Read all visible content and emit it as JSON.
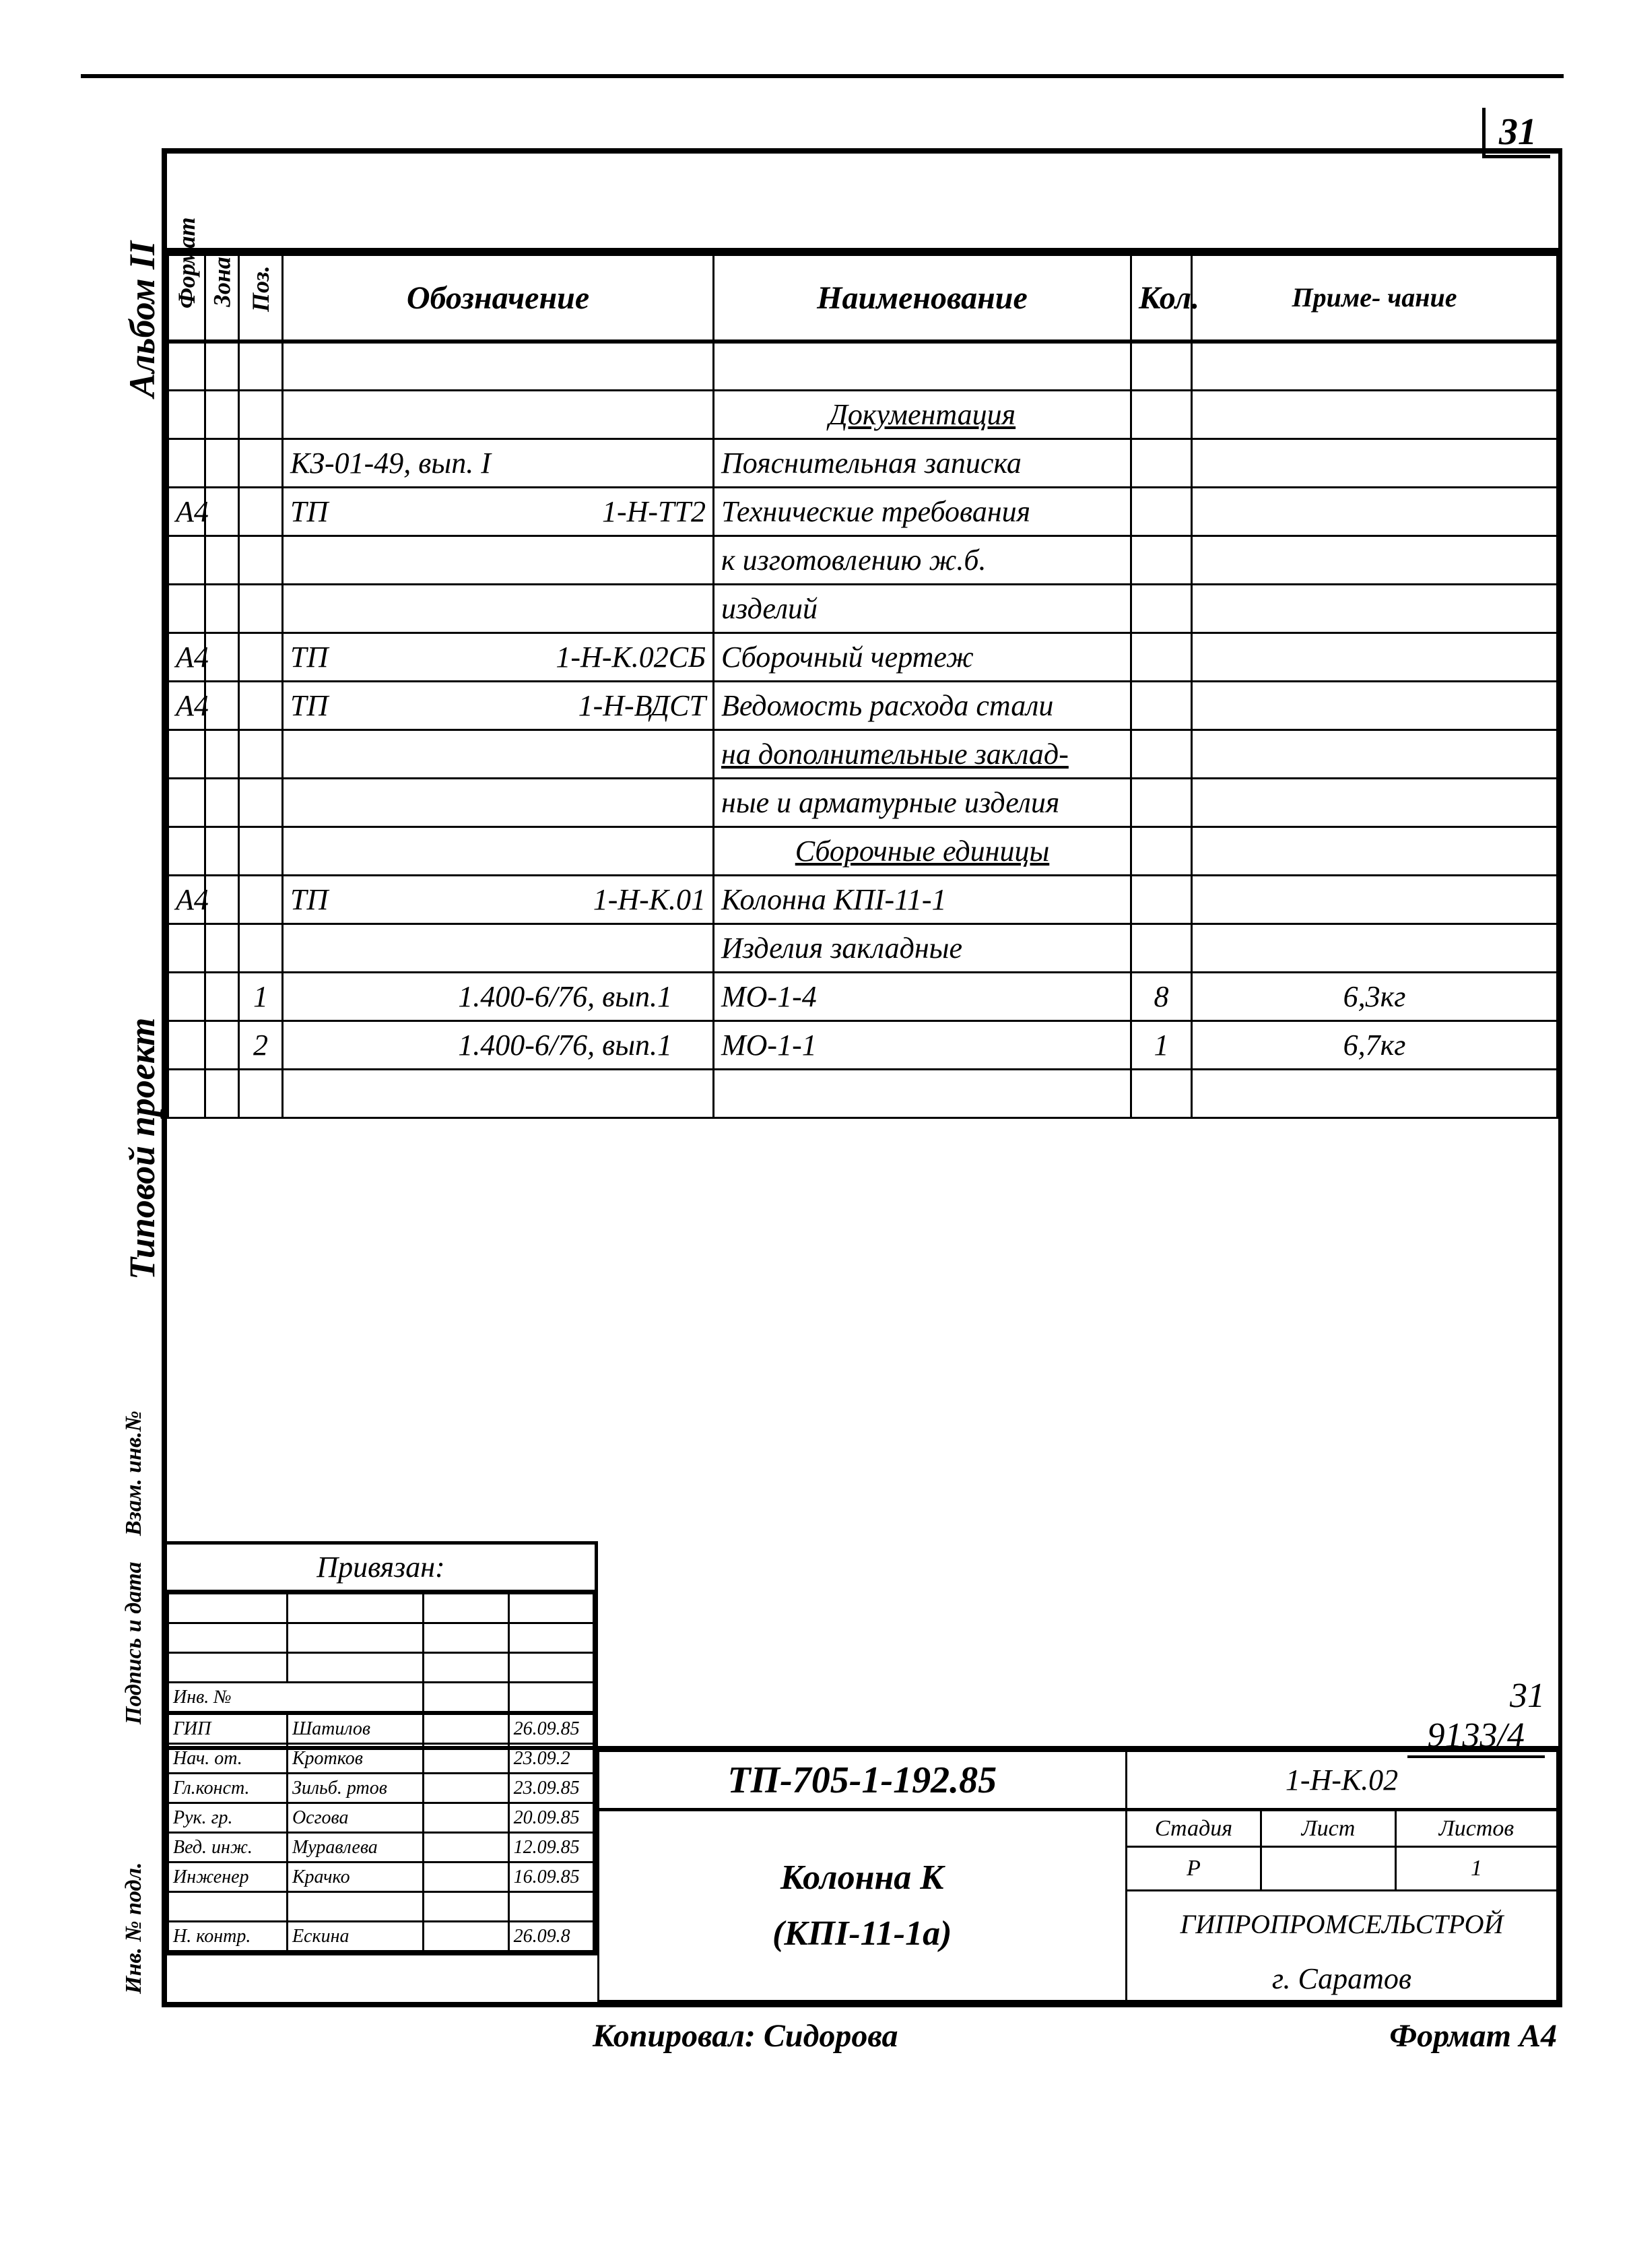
{
  "page_number_top": "31",
  "side": {
    "album": "Альбом II",
    "project": "Типовой проект",
    "a": "Взам. инв.№",
    "b": "Подпись и дата",
    "c": "Инв. № подл."
  },
  "bom": {
    "headers": {
      "format": "Формат",
      "zone": "Зона",
      "pos": "Поз.",
      "designation": "Обозначение",
      "name": "Наименование",
      "qty": "Кол.",
      "note": "Приме-\nчание"
    },
    "rows": [
      {
        "fmt": "",
        "zone": "",
        "pos": "",
        "desig": "",
        "name": "",
        "qty": "",
        "note": ""
      },
      {
        "fmt": "",
        "zone": "",
        "pos": "",
        "desig": "",
        "name": "Документация",
        "name_underline": true,
        "name_center": true,
        "qty": "",
        "note": ""
      },
      {
        "fmt": "",
        "zone": "",
        "pos": "",
        "desig": "КЗ-01-49, вып. I",
        "name": "Пояснительная записка",
        "qty": "",
        "note": ""
      },
      {
        "fmt": "А4",
        "zone": "",
        "pos": "",
        "desig_l": "ТП",
        "desig_r": "1-Н-ТТ2",
        "name": "Технические требования",
        "qty": "",
        "note": ""
      },
      {
        "fmt": "",
        "zone": "",
        "pos": "",
        "desig": "",
        "name": "к изготовлению ж.б.",
        "qty": "",
        "note": ""
      },
      {
        "fmt": "",
        "zone": "",
        "pos": "",
        "desig": "",
        "name": "изделий",
        "qty": "",
        "note": ""
      },
      {
        "fmt": "А4",
        "zone": "",
        "pos": "",
        "desig_l": "ТП",
        "desig_r": "1-Н-К.02СБ",
        "name": "Сборочный чертеж",
        "qty": "",
        "note": ""
      },
      {
        "fmt": "А4",
        "zone": "",
        "pos": "",
        "desig_l": "ТП",
        "desig_r": "1-Н-ВДСТ",
        "name": "Ведомость расхода стали",
        "qty": "",
        "note": ""
      },
      {
        "fmt": "",
        "zone": "",
        "pos": "",
        "desig": "",
        "name": "на дополнительные заклад-",
        "name_underline": true,
        "qty": "",
        "note": ""
      },
      {
        "fmt": "",
        "zone": "",
        "pos": "",
        "desig": "",
        "name": "ные и арматурные изделия",
        "qty": "",
        "note": ""
      },
      {
        "fmt": "",
        "zone": "",
        "pos": "",
        "desig": "",
        "name": "Сборочные единицы",
        "name_underline": true,
        "name_center": true,
        "qty": "",
        "note": ""
      },
      {
        "fmt": "А4",
        "zone": "",
        "pos": "",
        "desig_l": "ТП",
        "desig_r": "1-Н-К.01",
        "name": "Колонна КПI-11-1",
        "qty": "",
        "note": ""
      },
      {
        "fmt": "",
        "zone": "",
        "pos": "",
        "desig": "",
        "name": "Изделия закладные",
        "qty": "",
        "note": ""
      },
      {
        "fmt": "",
        "zone": "",
        "pos": "1",
        "desig": "1.400-6/76, вып.1",
        "desig_right_align": true,
        "name": "МО-1-4",
        "qty": "8",
        "note": "6,3кг"
      },
      {
        "fmt": "",
        "zone": "",
        "pos": "2",
        "desig": "1.400-6/76, вып.1",
        "desig_right_align": true,
        "name": "МО-1-1",
        "qty": "1",
        "note": "6,7кг"
      },
      {
        "fmt": "",
        "zone": "",
        "pos": "",
        "desig": "",
        "name": "",
        "qty": "",
        "note": ""
      }
    ]
  },
  "attach": {
    "header": "Привязан:",
    "inv_label": "Инв. №",
    "signers": [
      {
        "role": "ГИП",
        "name": "Шатилов",
        "date": "26.09.85"
      },
      {
        "role": "Нач. от.",
        "name": "Кротков",
        "date": "23.09.2"
      },
      {
        "role": "Гл.конст.",
        "name": "Зильб. ртов",
        "date": "23.09.85"
      },
      {
        "role": "Рук. гр.",
        "name": "Осгова",
        "date": "20.09.85"
      },
      {
        "role": "Вед. инж.",
        "name": "Муравлева",
        "date": "12.09.85"
      },
      {
        "role": "Инженер",
        "name": "Крачко",
        "date": "16.09.85"
      },
      {
        "role": "",
        "name": "",
        "date": ""
      },
      {
        "role": "Н. контр.",
        "name": "Ескина",
        "date": "26.09.8"
      }
    ]
  },
  "titleblock": {
    "archive_page": "31",
    "archive_no": "9133/4",
    "doc_code": "ТП-705-1-192.85",
    "sheet_code": "1-Н-К.02",
    "title_l1": "Колонна К",
    "title_l2": "(КПI-11-1а)",
    "stage_hdr": "Стадия",
    "sheet_hdr": "Лист",
    "sheets_hdr": "Листов",
    "stage": "Р",
    "sheet": "",
    "sheets": "1",
    "org_l1": "ГИПРОПРОМСЕЛЬСТРОЙ",
    "org_l2": "г. Саратов"
  },
  "footer": {
    "copied": "Копировал: Сидорова",
    "format": "Формат А4"
  },
  "style": {
    "ink": "#000000",
    "bg": "#ffffff",
    "border_heavy": 6,
    "border_light": 3,
    "header_fontsize": 48,
    "row_fontsize": 44
  }
}
